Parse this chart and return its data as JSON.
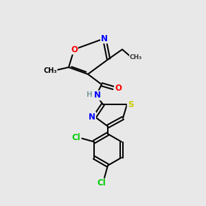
{
  "bg_color": "#e8e8e8",
  "bond_color": "#000000",
  "colors": {
    "N": "#0000ff",
    "O": "#ff0000",
    "S": "#cccc00",
    "Cl": "#00cc00",
    "C": "#000000",
    "H": "#7fa0a0"
  },
  "font_size": 8.5,
  "figsize": [
    3.0,
    3.0
  ],
  "dpi": 100
}
